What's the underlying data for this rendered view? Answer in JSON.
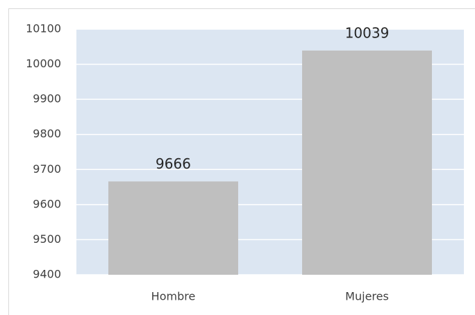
{
  "chart_data": {
    "type": "bar",
    "categories": [
      "Hombre",
      "Mujeres"
    ],
    "values": [
      9666,
      10039
    ],
    "color": "#bfbfbf",
    "ylim": [
      9400,
      10100
    ],
    "yticks": [
      9400,
      9500,
      9600,
      9700,
      9800,
      9900,
      10000,
      10100
    ],
    "grid": true,
    "data_labels": true
  }
}
